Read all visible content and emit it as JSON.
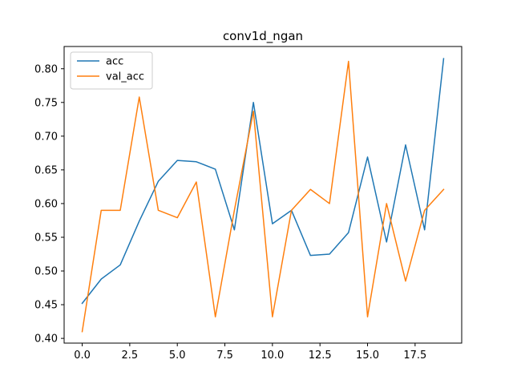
{
  "chart_data": {
    "type": "line",
    "title": "conv1d_ngan",
    "xlabel": "",
    "ylabel": "",
    "x": [
      0,
      1,
      2,
      3,
      4,
      5,
      6,
      7,
      8,
      9,
      10,
      11,
      12,
      13,
      14,
      15,
      16,
      17,
      18,
      19
    ],
    "xlim": [
      -0.95,
      19.95
    ],
    "ylim": [
      0.393,
      0.833
    ],
    "xticks": [
      0.0,
      2.5,
      5.0,
      7.5,
      10.0,
      12.5,
      15.0,
      17.5
    ],
    "xtick_labels": [
      "0.0",
      "2.5",
      "5.0",
      "7.5",
      "10.0",
      "12.5",
      "15.0",
      "17.5"
    ],
    "yticks": [
      0.4,
      0.45,
      0.5,
      0.55,
      0.6,
      0.65,
      0.7,
      0.75,
      0.8
    ],
    "ytick_labels": [
      "0.40",
      "0.45",
      "0.50",
      "0.55",
      "0.60",
      "0.65",
      "0.70",
      "0.75",
      "0.80"
    ],
    "grid": false,
    "legend_position": "top-left",
    "series": [
      {
        "name": "acc",
        "color": "#1f77b4",
        "values": [
          0.452,
          0.488,
          0.509,
          0.574,
          0.633,
          0.664,
          0.662,
          0.651,
          0.561,
          0.75,
          0.57,
          0.59,
          0.523,
          0.525,
          0.557,
          0.669,
          0.543,
          0.687,
          0.561,
          0.815
        ]
      },
      {
        "name": "val_acc",
        "color": "#ff7f0e",
        "values": [
          0.41,
          0.59,
          0.59,
          0.758,
          0.59,
          0.579,
          0.632,
          0.432,
          0.59,
          0.737,
          0.432,
          0.59,
          0.621,
          0.6,
          0.811,
          0.432,
          0.6,
          0.485,
          0.59,
          0.621
        ]
      }
    ]
  }
}
